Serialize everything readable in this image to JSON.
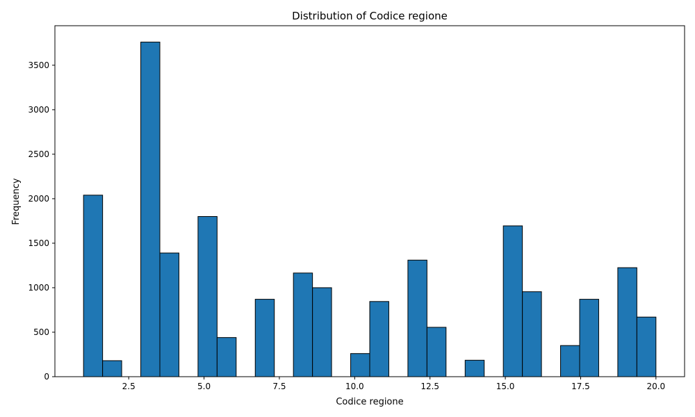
{
  "chart_data": {
    "type": "bar",
    "title": "Distribution of Codice regione",
    "xlabel": "Codice regione",
    "ylabel": "Frequency",
    "xlim": [
      0.05,
      20.95
    ],
    "ylim": [
      0,
      3944
    ],
    "xticks": [
      2.5,
      5.0,
      7.5,
      10.0,
      12.5,
      15.0,
      17.5,
      20.0
    ],
    "xtick_labels": [
      "2.5",
      "5.0",
      "7.5",
      "10.0",
      "12.5",
      "15.0",
      "17.5",
      "20.0"
    ],
    "yticks": [
      0,
      500,
      1000,
      1500,
      2000,
      2500,
      3000,
      3500
    ],
    "ytick_labels": [
      "0",
      "500",
      "1000",
      "1500",
      "2000",
      "2500",
      "3000",
      "3500"
    ],
    "bin_edges": [
      1.0,
      1.6333,
      2.2667,
      2.9,
      3.5333,
      4.1667,
      4.8,
      5.4333,
      6.0667,
      6.7,
      7.3333,
      7.9667,
      8.6,
      9.2333,
      9.8667,
      10.5,
      11.1333,
      11.7667,
      12.4,
      13.0333,
      13.6667,
      14.3,
      14.9333,
      15.5667,
      16.2,
      16.8333,
      17.4667,
      18.1,
      18.7333,
      19.3667,
      20.0
    ],
    "values": [
      2040,
      180,
      0,
      3760,
      1390,
      0,
      1800,
      440,
      0,
      870,
      0,
      1165,
      1000,
      0,
      260,
      845,
      0,
      1310,
      555,
      0,
      185,
      0,
      1695,
      955,
      0,
      350,
      870,
      0,
      1225,
      670
    ],
    "bar_color": "#1f77b4",
    "edge_color": "#000000",
    "grid": false,
    "legend": "none"
  }
}
